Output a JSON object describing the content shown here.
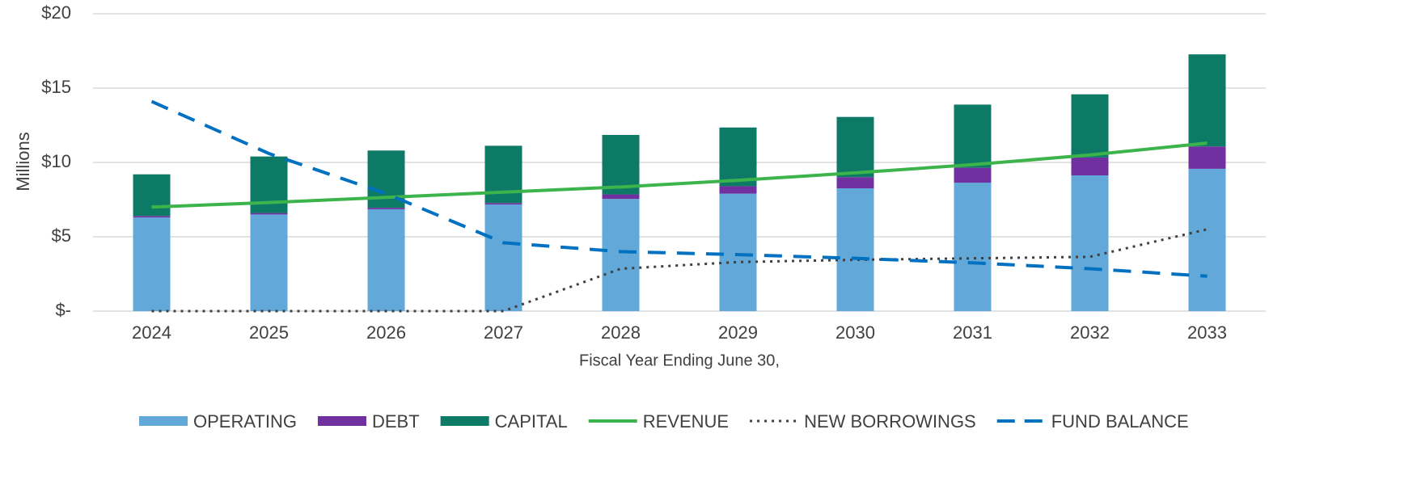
{
  "chart_data": {
    "type": "bar",
    "x_label": "Fiscal Year Ending June 30,",
    "y_label": "Millions",
    "categories": [
      "2024",
      "2025",
      "2026",
      "2027",
      "2028",
      "2029",
      "2030",
      "2031",
      "2032",
      "2033"
    ],
    "series": [
      {
        "name": "OPERATING",
        "kind": "bar",
        "color": "#62a8d8",
        "values": [
          6.3,
          6.5,
          6.85,
          7.17,
          7.55,
          7.9,
          8.26,
          8.64,
          9.13,
          9.57
        ]
      },
      {
        "name": "DEBT",
        "kind": "bar",
        "color": "#7030a0",
        "values": [
          0.1,
          0.1,
          0.1,
          0.1,
          0.3,
          0.5,
          0.75,
          1.0,
          1.2,
          1.5
        ]
      },
      {
        "name": "CAPITAL",
        "kind": "bar",
        "color": "#0d7a66",
        "values": [
          2.8,
          3.8,
          3.85,
          3.85,
          4.0,
          3.95,
          4.05,
          4.25,
          4.25,
          6.2
        ]
      },
      {
        "name": "REVENUE",
        "kind": "line",
        "style": "solid",
        "color": "#3cb44b",
        "values": [
          7.0,
          7.3,
          7.65,
          8.0,
          8.35,
          8.8,
          9.3,
          9.85,
          10.5,
          11.3
        ]
      },
      {
        "name": "NEW BORROWINGS",
        "kind": "line",
        "style": "dotted",
        "color": "#404040",
        "values": [
          0,
          0,
          0,
          0,
          2.85,
          3.3,
          3.45,
          3.55,
          3.65,
          5.5
        ]
      },
      {
        "name": "FUND BALANCE",
        "kind": "line",
        "style": "dashed",
        "color": "#0070c0",
        "values": [
          14.1,
          10.6,
          7.9,
          4.6,
          4.0,
          3.8,
          3.55,
          3.25,
          2.85,
          2.35
        ]
      }
    ],
    "ylim": [
      0,
      20
    ],
    "yticks": [
      {
        "value": 0,
        "label": "$-"
      },
      {
        "value": 5,
        "label": "$5"
      },
      {
        "value": 10,
        "label": "$10"
      },
      {
        "value": 15,
        "label": "$15"
      },
      {
        "value": 20,
        "label": "$20"
      }
    ],
    "grid": true,
    "legend": "bottom"
  }
}
